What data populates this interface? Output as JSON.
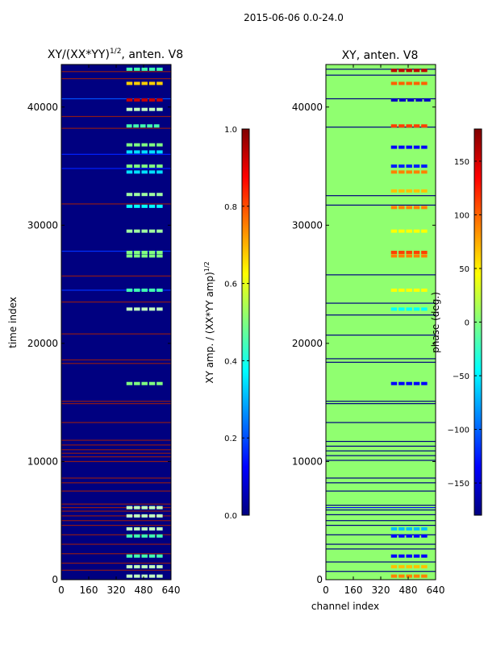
{
  "chart_data": {
    "suptitle": "2015-06-06 0.0-24.0",
    "colormap": [
      "#000080",
      "#0000ff",
      "#0080ff",
      "#00ffff",
      "#80ff80",
      "#ffff00",
      "#ff8000",
      "#ff0000",
      "#800000"
    ],
    "panels": [
      {
        "type": "heatmap",
        "title": "XY/(XX*YY)^1/2, anten. V8",
        "title_main": "XY/(XX*YY)",
        "title_sup": "1/2",
        "title_tail": ", anten. V8",
        "xlabel": "",
        "ylabel": "time index",
        "xlim": [
          0,
          640
        ],
        "ylim": [
          0,
          43600
        ],
        "xticks": [
          0,
          160,
          320,
          480,
          640
        ],
        "yticks": [
          0,
          10000,
          20000,
          30000,
          40000
        ],
        "background_color": "#000080",
        "colorbar": {
          "label": "XY amp. / (XX*YY amp)^1/2",
          "label_main": "XY amp. / (XX*YY amp)",
          "label_sup": "1/2",
          "range": [
            0.0,
            1.0
          ],
          "ticks": [
            0.0,
            0.2,
            0.4,
            0.6,
            0.8,
            1.0
          ],
          "tick_labels": [
            "0.0",
            "0.2",
            "0.4",
            "0.6",
            "0.8",
            "1.0"
          ]
        },
        "full_rows": [
          {
            "t": 43000,
            "color": "#8b1a1a"
          },
          {
            "t": 42400,
            "color": "#8b1a1a"
          },
          {
            "t": 40700,
            "color": "#0050ff"
          },
          {
            "t": 39200,
            "color": "#8b1a1a"
          },
          {
            "t": 38200,
            "color": "#8b1a1a"
          },
          {
            "t": 36000,
            "color": "#0020ff"
          },
          {
            "t": 34800,
            "color": "#0020ff"
          },
          {
            "t": 31800,
            "color": "#8b1a1a"
          },
          {
            "t": 27800,
            "color": "#0030ff"
          },
          {
            "t": 25700,
            "color": "#8b1a1a"
          },
          {
            "t": 24500,
            "color": "#0030ff"
          },
          {
            "t": 23500,
            "color": "#8b1a1a"
          },
          {
            "t": 20800,
            "color": "#8b1a1a"
          },
          {
            "t": 18600,
            "color": "#8b1a1a"
          },
          {
            "t": 18300,
            "color": "#8b1a1a"
          },
          {
            "t": 15100,
            "color": "#8b1a1a"
          },
          {
            "t": 14900,
            "color": "#8b1a1a"
          },
          {
            "t": 13300,
            "color": "#8b1a1a"
          },
          {
            "t": 11800,
            "color": "#8b1a1a"
          },
          {
            "t": 11400,
            "color": "#8b1a1a"
          },
          {
            "t": 11000,
            "color": "#8b1a1a"
          },
          {
            "t": 10700,
            "color": "#8b1a1a"
          },
          {
            "t": 10400,
            "color": "#8b1a1a"
          },
          {
            "t": 10000,
            "color": "#8b1a1a"
          },
          {
            "t": 8600,
            "color": "#8b1a1a"
          },
          {
            "t": 8200,
            "color": "#8b1a1a"
          },
          {
            "t": 7500,
            "color": "#8b1a1a"
          },
          {
            "t": 6400,
            "color": "#8b1a1a"
          },
          {
            "t": 6100,
            "color": "#8b1a1a"
          },
          {
            "t": 5800,
            "color": "#8b1a1a"
          },
          {
            "t": 5400,
            "color": "#8b1a1a"
          },
          {
            "t": 5000,
            "color": "#8b1a1a"
          },
          {
            "t": 4600,
            "color": "#8b1a1a"
          },
          {
            "t": 3800,
            "color": "#8b1a1a"
          },
          {
            "t": 3000,
            "color": "#8b1a1a"
          },
          {
            "t": 2200,
            "color": "#8b1a1a"
          },
          {
            "t": 1400,
            "color": "#8b1a1a"
          },
          {
            "t": 800,
            "color": "#8b1a1a"
          }
        ],
        "blocks": [
          {
            "t": 43200,
            "x0": 380,
            "x1": 600,
            "color": "#40ffb0"
          },
          {
            "t": 42000,
            "x0": 380,
            "x1": 600,
            "color": "#ffd000"
          },
          {
            "t": 40600,
            "x0": 380,
            "x1": 600,
            "color": "#c00000"
          },
          {
            "t": 39800,
            "x0": 380,
            "x1": 600,
            "color": "#c0ffc0"
          },
          {
            "t": 38400,
            "x0": 380,
            "x1": 580,
            "color": "#40ffb0"
          },
          {
            "t": 36800,
            "x0": 380,
            "x1": 600,
            "color": "#80ff80"
          },
          {
            "t": 36200,
            "x0": 380,
            "x1": 600,
            "color": "#00e0ff"
          },
          {
            "t": 35000,
            "x0": 380,
            "x1": 600,
            "color": "#80ff80"
          },
          {
            "t": 34500,
            "x0": 380,
            "x1": 600,
            "color": "#00e0ff"
          },
          {
            "t": 32600,
            "x0": 380,
            "x1": 600,
            "color": "#a0ffa0"
          },
          {
            "t": 31600,
            "x0": 380,
            "x1": 600,
            "color": "#00ffff"
          },
          {
            "t": 29500,
            "x0": 380,
            "x1": 600,
            "color": "#a0ffa0"
          },
          {
            "t": 27700,
            "x0": 380,
            "x1": 600,
            "color": "#80ff80"
          },
          {
            "t": 27400,
            "x0": 380,
            "x1": 600,
            "color": "#80ff80"
          },
          {
            "t": 24500,
            "x0": 380,
            "x1": 600,
            "color": "#40ffb0"
          },
          {
            "t": 22900,
            "x0": 380,
            "x1": 600,
            "color": "#c0ffc0"
          },
          {
            "t": 16600,
            "x0": 380,
            "x1": 600,
            "color": "#80ff80"
          },
          {
            "t": 6100,
            "x0": 380,
            "x1": 600,
            "color": "#c0ffc0"
          },
          {
            "t": 5400,
            "x0": 380,
            "x1": 600,
            "color": "#c0ffc0"
          },
          {
            "t": 4300,
            "x0": 380,
            "x1": 600,
            "color": "#c0ffc0"
          },
          {
            "t": 3700,
            "x0": 380,
            "x1": 600,
            "color": "#40ffb0"
          },
          {
            "t": 2000,
            "x0": 380,
            "x1": 600,
            "color": "#40ffb0"
          },
          {
            "t": 1100,
            "x0": 380,
            "x1": 600,
            "color": "#c0ffc0"
          },
          {
            "t": 300,
            "x0": 380,
            "x1": 600,
            "color": "#c0ffc0"
          }
        ]
      },
      {
        "type": "heatmap",
        "title": "XY, anten. V8",
        "title_main": "XY, anten. V8",
        "title_sup": "",
        "title_tail": "",
        "xlabel": "channel index",
        "ylabel": "",
        "xlim": [
          0,
          640
        ],
        "ylim": [
          0,
          43600
        ],
        "xticks": [
          0,
          160,
          320,
          480,
          640
        ],
        "yticks": [
          0,
          10000,
          20000,
          30000,
          40000
        ],
        "background_color": "#90ff70",
        "colorbar": {
          "label": "phase (deg.)",
          "label_main": "phase (deg.)",
          "label_sup": "",
          "range": [
            -180,
            180
          ],
          "ticks": [
            -150,
            -100,
            -50,
            0,
            50,
            100,
            150
          ],
          "tick_labels": [
            "−150",
            "−100",
            "−50",
            "0",
            "50",
            "100",
            "150"
          ]
        },
        "full_rows": [
          {
            "t": 43200,
            "color": "#000080"
          },
          {
            "t": 42700,
            "color": "#000080"
          },
          {
            "t": 40700,
            "color": "#000080"
          },
          {
            "t": 38300,
            "color": "#000080"
          },
          {
            "t": 32500,
            "color": "#000080"
          },
          {
            "t": 31700,
            "color": "#000080"
          },
          {
            "t": 25800,
            "color": "#000080"
          },
          {
            "t": 23400,
            "color": "#000080"
          },
          {
            "t": 22400,
            "color": "#000080"
          },
          {
            "t": 20700,
            "color": "#000080"
          },
          {
            "t": 18700,
            "color": "#000080"
          },
          {
            "t": 18400,
            "color": "#000080"
          },
          {
            "t": 15100,
            "color": "#000080"
          },
          {
            "t": 14900,
            "color": "#000080"
          },
          {
            "t": 13300,
            "color": "#000080"
          },
          {
            "t": 11700,
            "color": "#000080"
          },
          {
            "t": 11300,
            "color": "#000080"
          },
          {
            "t": 10900,
            "color": "#000080"
          },
          {
            "t": 10500,
            "color": "#000080"
          },
          {
            "t": 10100,
            "color": "#000080"
          },
          {
            "t": 8600,
            "color": "#000080"
          },
          {
            "t": 8200,
            "color": "#000080"
          },
          {
            "t": 7500,
            "color": "#000080"
          },
          {
            "t": 6300,
            "color": "#000080"
          },
          {
            "t": 6100,
            "color": "#0000ff"
          },
          {
            "t": 5900,
            "color": "#000080"
          },
          {
            "t": 5500,
            "color": "#000080"
          },
          {
            "t": 5000,
            "color": "#000080"
          },
          {
            "t": 4600,
            "color": "#000080"
          },
          {
            "t": 3800,
            "color": "#000080"
          },
          {
            "t": 3000,
            "color": "#000080"
          },
          {
            "t": 2600,
            "color": "#000080"
          },
          {
            "t": 1500,
            "color": "#000080"
          },
          {
            "t": 700,
            "color": "#000080"
          }
        ],
        "blocks": [
          {
            "t": 43100,
            "x0": 380,
            "x1": 600,
            "color": "#c00000"
          },
          {
            "t": 42000,
            "x0": 380,
            "x1": 600,
            "color": "#ff6000"
          },
          {
            "t": 40600,
            "x0": 380,
            "x1": 620,
            "color": "#0000c0"
          },
          {
            "t": 38400,
            "x0": 380,
            "x1": 600,
            "color": "#ff4000"
          },
          {
            "t": 36600,
            "x0": 380,
            "x1": 600,
            "color": "#0000ff"
          },
          {
            "t": 35000,
            "x0": 380,
            "x1": 600,
            "color": "#0020ff"
          },
          {
            "t": 34500,
            "x0": 380,
            "x1": 600,
            "color": "#ff8000"
          },
          {
            "t": 32900,
            "x0": 380,
            "x1": 600,
            "color": "#ffc000"
          },
          {
            "t": 31500,
            "x0": 380,
            "x1": 600,
            "color": "#ff8000"
          },
          {
            "t": 29500,
            "x0": 380,
            "x1": 600,
            "color": "#ffff00"
          },
          {
            "t": 27700,
            "x0": 380,
            "x1": 600,
            "color": "#ff4000"
          },
          {
            "t": 27400,
            "x0": 380,
            "x1": 600,
            "color": "#ff8000"
          },
          {
            "t": 24500,
            "x0": 380,
            "x1": 600,
            "color": "#ffff00"
          },
          {
            "t": 22900,
            "x0": 380,
            "x1": 600,
            "color": "#00ffff"
          },
          {
            "t": 16600,
            "x0": 380,
            "x1": 600,
            "color": "#0000ff"
          },
          {
            "t": 4300,
            "x0": 380,
            "x1": 600,
            "color": "#00c0ff"
          },
          {
            "t": 3700,
            "x0": 380,
            "x1": 600,
            "color": "#0000ff"
          },
          {
            "t": 2000,
            "x0": 380,
            "x1": 600,
            "color": "#0000ff"
          },
          {
            "t": 1100,
            "x0": 380,
            "x1": 600,
            "color": "#ffc000"
          },
          {
            "t": 300,
            "x0": 380,
            "x1": 600,
            "color": "#ff8000"
          }
        ]
      }
    ]
  }
}
